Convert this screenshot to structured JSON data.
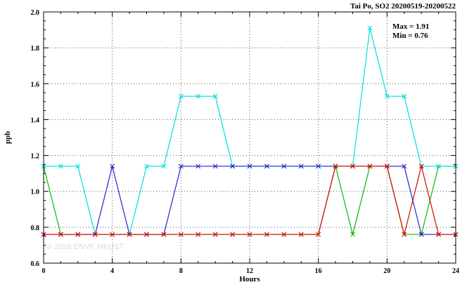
{
  "title": "Tai Po, SO2 20200519-20200522",
  "annotation": {
    "max_label": "Max = 1.91",
    "min_label": "Min = 0.76"
  },
  "watermark": "© 2026 ENVF, HKUST",
  "chart_data": {
    "type": "line",
    "title": "Tai Po, SO2 20200519-20200522",
    "xlabel": "Hours",
    "ylabel": "ppb",
    "xlim": [
      0,
      24
    ],
    "ylim": [
      0.6,
      2.0
    ],
    "x_ticks": [
      0,
      4,
      8,
      12,
      16,
      20,
      24
    ],
    "y_ticks": [
      0.6,
      0.8,
      1.0,
      1.2,
      1.4,
      1.6,
      1.8,
      2.0
    ],
    "grid": "dotted",
    "legend": "none",
    "marker": "x",
    "max": 1.91,
    "min": 0.76,
    "x": [
      0,
      1,
      2,
      3,
      4,
      5,
      6,
      7,
      8,
      9,
      10,
      11,
      12,
      13,
      14,
      15,
      16,
      17,
      18,
      19,
      20,
      21,
      22,
      23,
      24
    ],
    "series": [
      {
        "name": "green",
        "color": "#00bb00",
        "values": [
          1.14,
          0.76,
          0.76,
          0.76,
          0.76,
          0.76,
          0.76,
          0.76,
          0.76,
          0.76,
          0.76,
          0.76,
          0.76,
          0.76,
          0.76,
          0.76,
          0.76,
          1.14,
          0.76,
          1.14,
          1.14,
          0.76,
          0.76,
          1.14,
          1.14
        ]
      },
      {
        "name": "cyan",
        "color": "#00dddd",
        "values": [
          1.14,
          1.14,
          1.14,
          0.76,
          0.76,
          0.76,
          1.14,
          1.14,
          1.53,
          1.53,
          1.53,
          1.14,
          1.14,
          1.14,
          1.14,
          1.14,
          1.14,
          1.14,
          1.14,
          1.91,
          1.53,
          1.53,
          1.14,
          1.14,
          1.14
        ]
      },
      {
        "name": "blue",
        "color": "#2222cc",
        "values": [
          0.76,
          0.76,
          0.76,
          0.76,
          1.14,
          0.76,
          0.76,
          0.76,
          1.14,
          1.14,
          1.14,
          1.14,
          1.14,
          1.14,
          1.14,
          1.14,
          1.14,
          1.14,
          1.14,
          1.14,
          1.14,
          1.14,
          0.76,
          0.76,
          0.76
        ]
      },
      {
        "name": "red",
        "color": "#dd0000",
        "values": [
          0.76,
          0.76,
          0.76,
          0.76,
          0.76,
          0.76,
          0.76,
          0.76,
          0.76,
          0.76,
          0.76,
          0.76,
          0.76,
          0.76,
          0.76,
          0.76,
          0.76,
          1.14,
          1.14,
          1.14,
          1.14,
          0.76,
          1.14,
          0.76,
          0.76
        ]
      }
    ]
  }
}
